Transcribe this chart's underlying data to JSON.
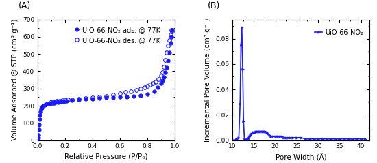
{
  "panel_A": {
    "label": "(A)",
    "xlabel": "Relative Pressure (P/P₀)",
    "ylabel": "Volume Adsorbed @ STP (cm³ g⁻¹)",
    "ylim": [
      0,
      700
    ],
    "xlim": [
      0,
      1.0
    ],
    "yticks": [
      0,
      100,
      200,
      300,
      400,
      500,
      600,
      700
    ],
    "xticks": [
      0.0,
      0.2,
      0.4,
      0.6,
      0.8,
      1.0
    ],
    "line_color": "#1a1aff",
    "legend_ads": "UiO-66-NO₂ ads. @ 77K",
    "legend_des": "UiO-66-NO₂ des. @ 77K",
    "ads_x": [
      0.002,
      0.004,
      0.006,
      0.008,
      0.01,
      0.013,
      0.016,
      0.02,
      0.025,
      0.03,
      0.035,
      0.04,
      0.05,
      0.06,
      0.07,
      0.08,
      0.09,
      0.1,
      0.11,
      0.12,
      0.13,
      0.15,
      0.17,
      0.19,
      0.21,
      0.25,
      0.3,
      0.35,
      0.4,
      0.45,
      0.5,
      0.55,
      0.6,
      0.65,
      0.7,
      0.75,
      0.8,
      0.85,
      0.875,
      0.9,
      0.91,
      0.92,
      0.93,
      0.94,
      0.95,
      0.96,
      0.97,
      0.975,
      0.98
    ],
    "ads_y": [
      5,
      15,
      30,
      60,
      90,
      120,
      145,
      165,
      180,
      190,
      196,
      200,
      205,
      208,
      210,
      212,
      213,
      215,
      216,
      217,
      219,
      221,
      223,
      225,
      227,
      230,
      235,
      238,
      240,
      243,
      246,
      248,
      250,
      253,
      256,
      260,
      268,
      285,
      305,
      330,
      345,
      365,
      395,
      420,
      460,
      510,
      565,
      600,
      640
    ],
    "des_x": [
      0.975,
      0.98,
      0.97,
      0.96,
      0.95,
      0.94,
      0.93,
      0.92,
      0.91,
      0.9,
      0.88,
      0.86,
      0.84,
      0.82,
      0.8,
      0.78,
      0.75,
      0.72,
      0.68,
      0.64,
      0.6,
      0.55,
      0.5,
      0.45,
      0.4,
      0.35,
      0.3,
      0.25,
      0.22,
      0.2,
      0.18,
      0.16,
      0.14,
      0.13,
      0.12,
      0.11,
      0.1
    ],
    "des_y": [
      640,
      630,
      610,
      580,
      550,
      510,
      465,
      425,
      395,
      375,
      355,
      340,
      330,
      322,
      315,
      308,
      300,
      292,
      284,
      278,
      270,
      262,
      256,
      250,
      246,
      243,
      240,
      237,
      234,
      232,
      230,
      228,
      226,
      225,
      224,
      223,
      222
    ]
  },
  "panel_B": {
    "label": "(B)",
    "xlabel": "Pore Width (Å)",
    "ylabel": "Incremental Pore Volume (cm³ g⁻¹)",
    "ylim": [
      0,
      0.095
    ],
    "xlim": [
      10,
      42
    ],
    "yticks": [
      0.0,
      0.02,
      0.04,
      0.06,
      0.08
    ],
    "xticks": [
      10,
      15,
      20,
      25,
      30,
      35,
      40
    ],
    "line_color": "#1a1aff",
    "legend": "UiO-66-NO₂",
    "pore_x": [
      10.0,
      10.5,
      11.0,
      11.5,
      11.8,
      12.0,
      12.2,
      12.4,
      12.6,
      12.8,
      13.0,
      13.2,
      13.4,
      13.6,
      13.8,
      14.0,
      14.2,
      14.5,
      14.8,
      15.0,
      15.2,
      15.5,
      15.8,
      16.0,
      16.3,
      16.6,
      17.0,
      17.3,
      17.6,
      18.0,
      18.3,
      18.6,
      19.0,
      19.5,
      20.0,
      20.5,
      21.0,
      21.5,
      22.0,
      22.5,
      23.0,
      23.5,
      24.0,
      25.0,
      26.0,
      27.0,
      28.0,
      29.0,
      30.0,
      31.0,
      32.0,
      33.0,
      34.0,
      35.0,
      36.0,
      37.0,
      38.0,
      39.0,
      40.0,
      41.0
    ],
    "pore_y": [
      0.0,
      0.0,
      0.001,
      0.002,
      0.029,
      0.075,
      0.089,
      0.056,
      0.015,
      0.001,
      0.0,
      0.0,
      0.001,
      0.001,
      0.002,
      0.003,
      0.004,
      0.005,
      0.006,
      0.006,
      0.006,
      0.007,
      0.007,
      0.007,
      0.007,
      0.007,
      0.007,
      0.007,
      0.007,
      0.006,
      0.005,
      0.004,
      0.003,
      0.003,
      0.003,
      0.003,
      0.003,
      0.003,
      0.002,
      0.002,
      0.002,
      0.002,
      0.002,
      0.002,
      0.002,
      0.001,
      0.001,
      0.001,
      0.001,
      0.001,
      0.001,
      0.001,
      0.001,
      0.001,
      0.001,
      0.001,
      0.001,
      0.001,
      0.001,
      0.001
    ]
  },
  "figure_color": "#ffffff",
  "line_width": 1.2,
  "marker_size": 4.0,
  "font_size_label": 7.5,
  "font_size_tick": 6.5,
  "font_size_legend": 7.0,
  "font_size_panel": 9
}
